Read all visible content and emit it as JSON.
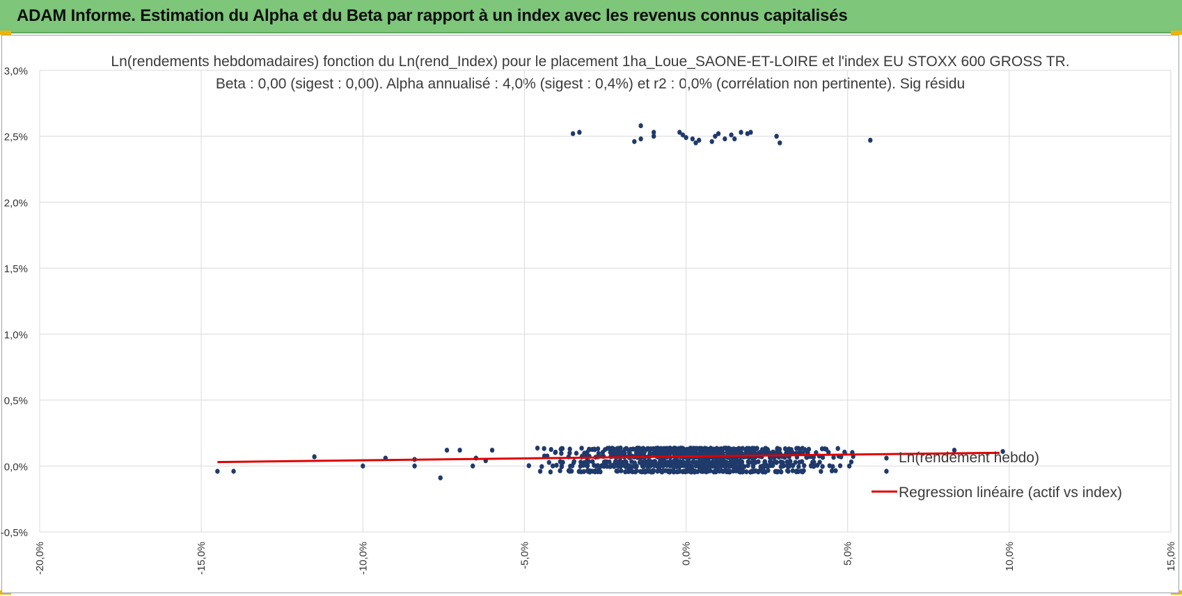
{
  "header": {
    "title": "ADAM Informe. Estimation du Alpha et du Beta par rapport à un index avec les revenus connus capitalisés"
  },
  "colors": {
    "banner": "#7dc67a",
    "points": "#1f3a6b",
    "regression": "#e00000",
    "corner": "#f0b400"
  },
  "chart_data": {
    "type": "scatter",
    "title_line1": "Ln(rendements hebdomadaires) fonction du Ln(rend_Index) pour le placement 1ha_Loue_SAONE-ET-LOIRE et l'index EU STOXX 600 GROSS TR.",
    "title_line2": "Beta : 0,00 (sigest : 0,00). Alpha annualisé : 4,0% (sigest : 0,4%) et r2 : 0,0% (corrélation non pertinente). Sig résidu",
    "xlabel": "",
    "ylabel": "",
    "xlim": [
      -20,
      15
    ],
    "ylim": [
      -0.5,
      3.0
    ],
    "x_ticks": [
      "-20,0%",
      "-15,0%",
      "-10,0%",
      "-5,0%",
      "0,0%",
      "5,0%",
      "10,0%",
      "15,0%"
    ],
    "y_ticks": [
      "3,0%",
      "2,5%",
      "2,0%",
      "1,5%",
      "1,0%",
      "0,5%",
      "0,0%",
      "-0,5%"
    ],
    "grid": "vertical",
    "legend_position": "right",
    "series": [
      {
        "name": "Ln(rendement hebdo)",
        "outliers": [
          [
            -3.5,
            2.52
          ],
          [
            -3.3,
            2.53
          ],
          [
            -1.6,
            2.46
          ],
          [
            -1.4,
            2.58
          ],
          [
            -1.4,
            2.48
          ],
          [
            -1.0,
            2.5
          ],
          [
            -1.0,
            2.53
          ],
          [
            -0.2,
            2.53
          ],
          [
            -0.1,
            2.51
          ],
          [
            0.0,
            2.49
          ],
          [
            0.2,
            2.48
          ],
          [
            0.3,
            2.45
          ],
          [
            0.4,
            2.47
          ],
          [
            0.8,
            2.46
          ],
          [
            0.9,
            2.5
          ],
          [
            1.0,
            2.52
          ],
          [
            1.2,
            2.48
          ],
          [
            1.4,
            2.51
          ],
          [
            1.5,
            2.48
          ],
          [
            1.7,
            2.53
          ],
          [
            1.9,
            2.52
          ],
          [
            2.0,
            2.53
          ],
          [
            2.8,
            2.5
          ],
          [
            2.9,
            2.45
          ],
          [
            5.7,
            2.47
          ],
          [
            -14.5,
            -0.04
          ],
          [
            -14.0,
            -0.04
          ],
          [
            -11.5,
            0.07
          ],
          [
            -10.0,
            0.0
          ],
          [
            -9.3,
            0.06
          ],
          [
            -8.4,
            0.05
          ],
          [
            -8.4,
            0.0
          ],
          [
            -7.6,
            -0.09
          ],
          [
            -7.4,
            0.12
          ],
          [
            -7.0,
            0.12
          ],
          [
            -6.6,
            0.0
          ],
          [
            -6.5,
            0.06
          ],
          [
            -6.2,
            0.04
          ],
          [
            -6.0,
            0.12
          ],
          [
            6.2,
            0.06
          ],
          [
            6.2,
            -0.04
          ],
          [
            8.3,
            0.12
          ],
          [
            9.8,
            0.11
          ]
        ],
        "dense_cluster": {
          "x_range": [
            -5.5,
            6.0
          ],
          "y_levels": [
            -0.04,
            0.0,
            0.03,
            0.07,
            0.1,
            0.13
          ],
          "approx_count": 1100
        }
      },
      {
        "name": "Regression linéaire (actif vs index)",
        "line": [
          [
            -14.5,
            0.03
          ],
          [
            9.7,
            0.1
          ]
        ]
      }
    ]
  }
}
